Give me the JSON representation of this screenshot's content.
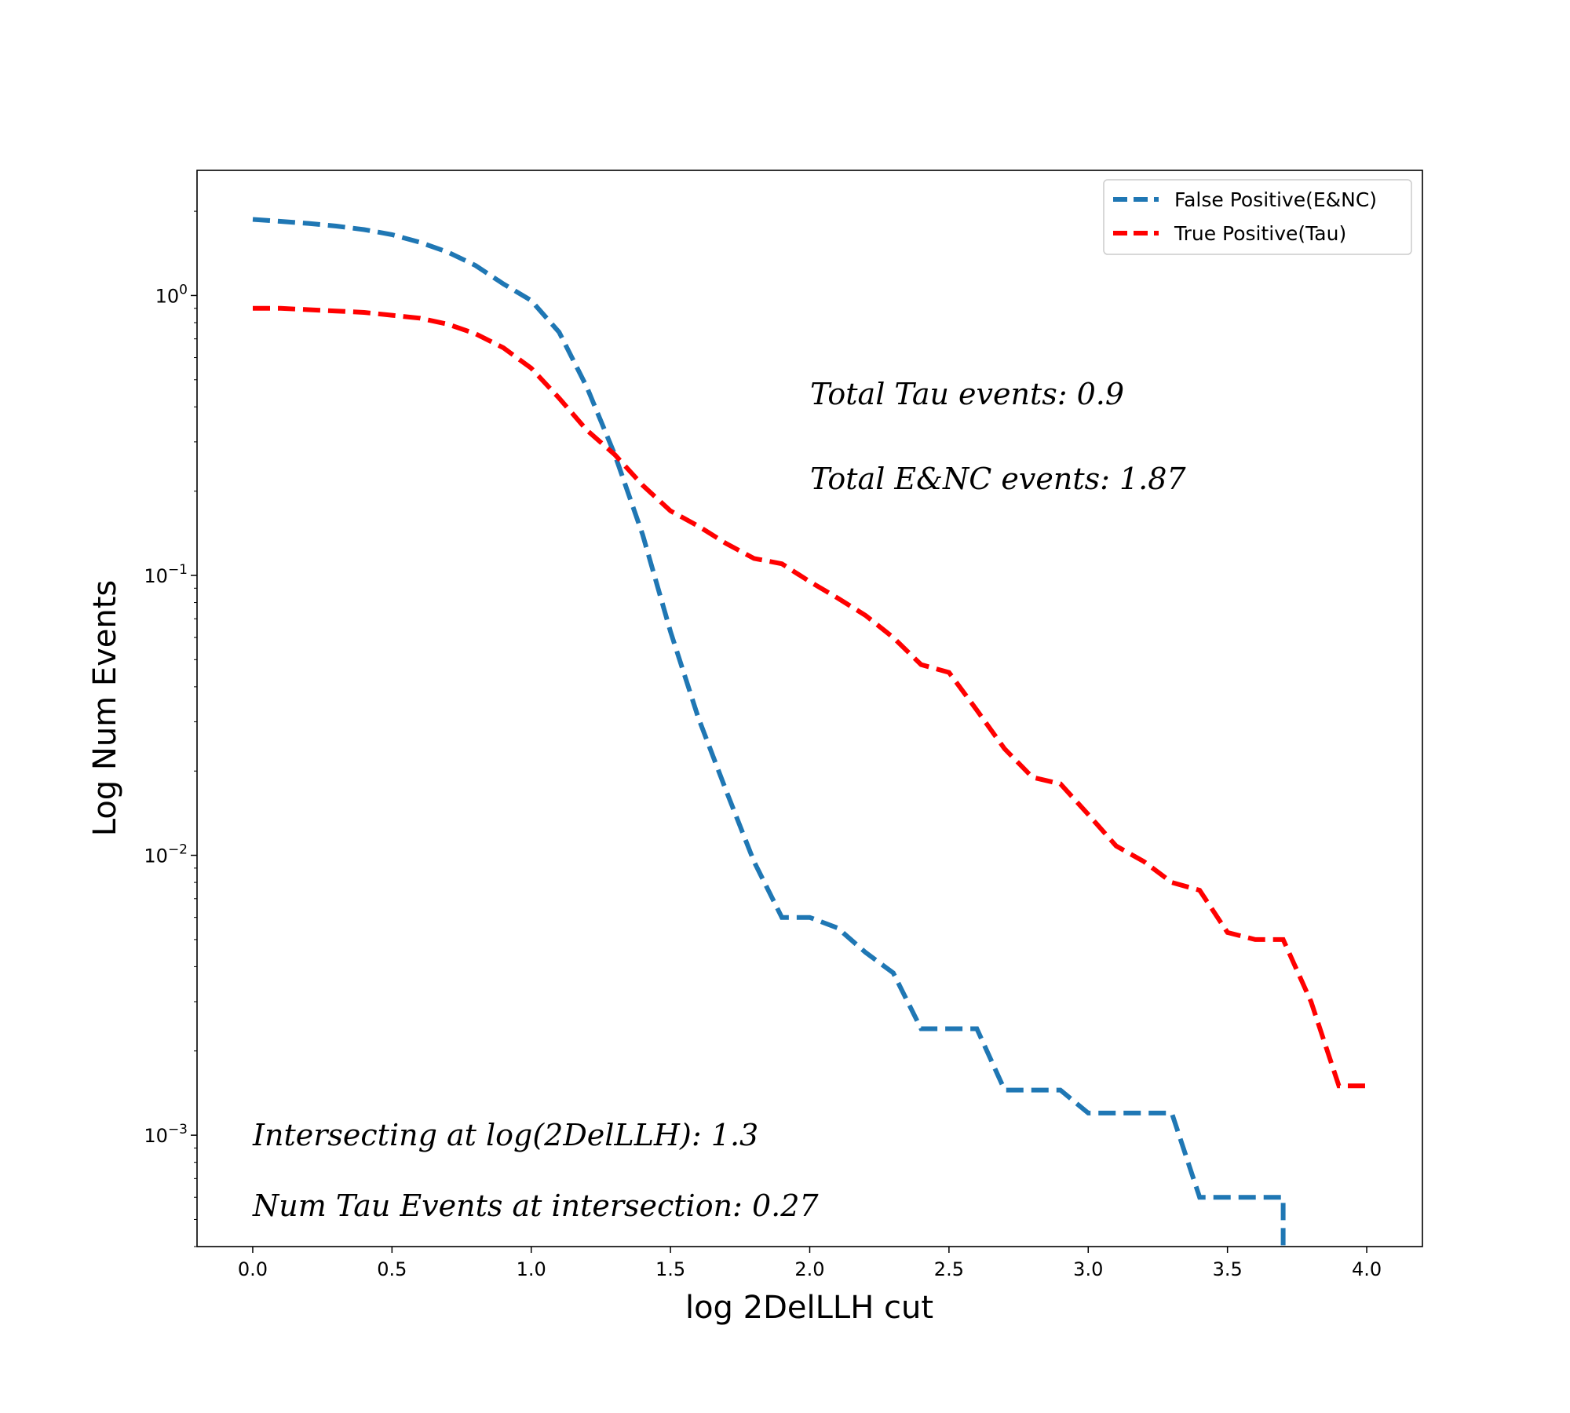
{
  "chart_data": {
    "type": "line",
    "title": "",
    "xlabel": "log 2DelLLH cut",
    "ylabel": "Log Num Events",
    "xlim": [
      -0.2,
      4.2
    ],
    "ylim": [
      0.0004,
      2.8
    ],
    "yscale": "log",
    "grid": false,
    "legend_position": "top-right",
    "x_ticks": [
      0.0,
      0.5,
      1.0,
      1.5,
      2.0,
      2.5,
      3.0,
      3.5,
      4.0
    ],
    "x_tick_labels": [
      "0.0",
      "0.5",
      "1.0",
      "1.5",
      "2.0",
      "2.5",
      "3.0",
      "3.5",
      "4.0"
    ],
    "y_ticks": [
      {
        "value": 1,
        "base": "10",
        "exp": "0"
      },
      {
        "value": 0.1,
        "base": "10",
        "exp": "−1"
      },
      {
        "value": 0.01,
        "base": "10",
        "exp": "−2"
      },
      {
        "value": 0.001,
        "base": "10",
        "exp": "−3"
      }
    ],
    "series": [
      {
        "name": "False Positive(E&NC)",
        "color": "#1f77b4",
        "style": "dashed",
        "x": [
          0.0,
          0.1,
          0.2,
          0.3,
          0.4,
          0.5,
          0.6,
          0.7,
          0.8,
          0.9,
          1.0,
          1.1,
          1.2,
          1.3,
          1.4,
          1.5,
          1.6,
          1.7,
          1.8,
          1.9,
          2.0,
          2.1,
          2.2,
          2.3,
          2.4,
          2.5,
          2.6,
          2.7,
          2.8,
          2.9,
          3.0,
          3.1,
          3.2,
          3.3,
          3.4,
          3.5,
          3.6,
          3.7,
          3.7
        ],
        "y": [
          1.87,
          1.84,
          1.81,
          1.77,
          1.72,
          1.65,
          1.55,
          1.43,
          1.28,
          1.1,
          0.96,
          0.74,
          0.47,
          0.27,
          0.14,
          0.063,
          0.031,
          0.017,
          0.0095,
          0.006,
          0.006,
          0.0055,
          0.0045,
          0.0038,
          0.0024,
          0.0024,
          0.0024,
          0.00145,
          0.00145,
          0.00145,
          0.0012,
          0.0012,
          0.0012,
          0.0012,
          0.0006,
          0.0006,
          0.0006,
          0.0006,
          0.0004
        ]
      },
      {
        "name": "True Positive(Tau)",
        "color": "#ff0000",
        "style": "dashed",
        "x": [
          0.0,
          0.1,
          0.2,
          0.3,
          0.4,
          0.5,
          0.6,
          0.7,
          0.8,
          0.9,
          1.0,
          1.1,
          1.2,
          1.3,
          1.4,
          1.5,
          1.6,
          1.7,
          1.8,
          1.9,
          2.0,
          2.1,
          2.2,
          2.3,
          2.4,
          2.5,
          2.6,
          2.7,
          2.8,
          2.9,
          3.0,
          3.1,
          3.2,
          3.3,
          3.4,
          3.5,
          3.6,
          3.7,
          3.8,
          3.9,
          4.0
        ],
        "y": [
          0.9,
          0.9,
          0.89,
          0.88,
          0.87,
          0.85,
          0.83,
          0.79,
          0.73,
          0.65,
          0.55,
          0.43,
          0.33,
          0.27,
          0.21,
          0.17,
          0.15,
          0.13,
          0.115,
          0.11,
          0.095,
          0.083,
          0.072,
          0.06,
          0.048,
          0.045,
          0.033,
          0.024,
          0.019,
          0.018,
          0.014,
          0.0108,
          0.0095,
          0.008,
          0.0075,
          0.0053,
          0.005,
          0.005,
          0.003,
          0.0015,
          0.0015
        ]
      }
    ],
    "annotations": [
      "Total Tau events: 0.9",
      "Total E&NC events: 1.87",
      "Intersecting at log(2DelLLH): 1.3",
      "Num Tau Events at intersection: 0.27"
    ]
  }
}
